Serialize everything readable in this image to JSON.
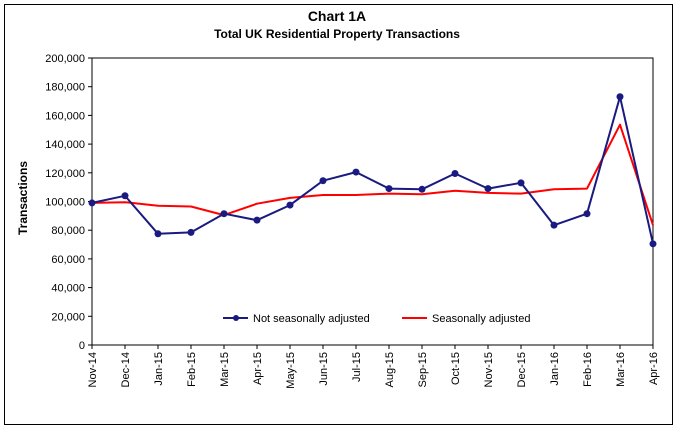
{
  "chart_data": {
    "type": "line",
    "title": "Chart 1A",
    "subtitle": "Total UK Residential Property Transactions",
    "xlabel": "",
    "ylabel": "Transactions",
    "ylim": [
      0,
      200000
    ],
    "yticks": [
      "0",
      "20,000",
      "40,000",
      "60,000",
      "80,000",
      "100,000",
      "120,000",
      "140,000",
      "160,000",
      "180,000",
      "200,000"
    ],
    "categories": [
      "Nov-14",
      "Dec-14",
      "Jan-15",
      "Feb-15",
      "Mar-15",
      "Apr-15",
      "May-15",
      "Jun-15",
      "Jul-15",
      "Aug-15",
      "Sep-15",
      "Oct-15",
      "Nov-15",
      "Dec-15",
      "Jan-16",
      "Feb-16",
      "Mar-16",
      "Apr-16"
    ],
    "series": [
      {
        "name": "Not seasonally adjusted",
        "color": "#1a1a80",
        "marker": "circle",
        "values": [
          99000,
          104000,
          77500,
          78500,
          91500,
          87000,
          97500,
          114500,
          120500,
          109000,
          108500,
          119500,
          109000,
          113000,
          83500,
          91500,
          173000,
          70500
        ]
      },
      {
        "name": "Seasonally adjusted",
        "color": "#ff0000",
        "marker": "none",
        "values": [
          99000,
          99500,
          97000,
          96500,
          90500,
          98500,
          102500,
          104500,
          104500,
          105500,
          105000,
          107500,
          106000,
          105500,
          108500,
          109000,
          153500,
          83500
        ]
      }
    ],
    "grid": false,
    "legend": "bottom-center"
  }
}
